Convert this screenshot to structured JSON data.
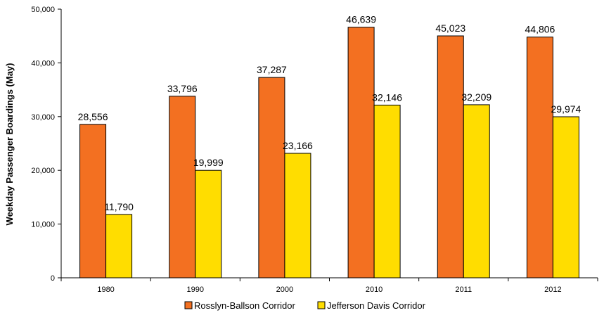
{
  "chart_data": {
    "type": "bar",
    "title": "",
    "xlabel": "",
    "ylabel": "Weekday Passenger Boardings (May)",
    "categories": [
      "1980",
      "1990",
      "2000",
      "2010",
      "2011",
      "2012"
    ],
    "ylim": [
      0,
      50000
    ],
    "yticks": [
      0,
      10000,
      20000,
      30000,
      40000,
      50000
    ],
    "ytick_labels": [
      "0",
      "10,000",
      "20,000",
      "30,000",
      "40,000",
      "50,000"
    ],
    "grid": false,
    "legend_position": "bottom",
    "series": [
      {
        "name": "Rosslyn-Ballson Corridor",
        "color": "#F37021",
        "values": [
          28556,
          33796,
          37287,
          46639,
          45023,
          44806
        ],
        "labels": [
          "28,556",
          "33,796",
          "37,287",
          "46,639",
          "45,023",
          "44,806"
        ]
      },
      {
        "name": "Jefferson Davis Corridor",
        "color": "#FFDD00",
        "values": [
          11790,
          19999,
          23166,
          32146,
          32209,
          29974
        ],
        "labels": [
          "11,790",
          "19,999",
          "23,166",
          "32,146",
          "32,209",
          "29,974"
        ]
      }
    ]
  }
}
